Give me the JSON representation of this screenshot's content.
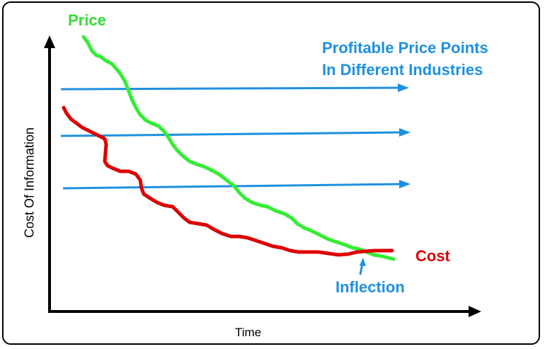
{
  "diagram": {
    "price_label": "Price",
    "cost_label": "Cost",
    "inflection_label": "Inflection",
    "profitable_line1": "Profitable Price Points",
    "profitable_line2": "In Different Industries",
    "y_axis_label": "Cost Of Information",
    "x_axis_label": "Time",
    "colors": {
      "price": "#33ee33",
      "cost": "#dd0000",
      "arrows": "#1e90e0",
      "axis": "#000000"
    }
  }
}
